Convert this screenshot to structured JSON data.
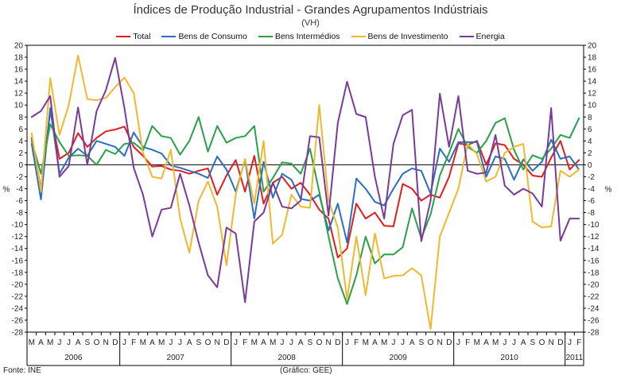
{
  "colors": {
    "total": "#e01e1e",
    "consumo": "#2a6fbf",
    "intermedios": "#2aa04a",
    "investimento": "#f0b830",
    "energia": "#7a3a9a"
  },
  "footer": {
    "source": "Fonte: INE",
    "credit": "(Gráfico: GEE)"
  },
  "chart_data": {
    "type": "line",
    "title": "Índices de Produção Industrial - Grandes Agrupamentos Indústriais",
    "subtitle": "(VH)",
    "ylabel_left": "%",
    "ylabel_right": "%",
    "ylim": [
      -28,
      20
    ],
    "yticks": [
      20,
      18,
      16,
      14,
      12,
      10,
      8,
      6,
      4,
      2,
      0,
      -2,
      -4,
      -6,
      -8,
      -10,
      -12,
      -14,
      -16,
      -18,
      -20,
      -22,
      -24,
      -26,
      -28
    ],
    "month_labels": [
      "M",
      "A",
      "M",
      "J",
      "J",
      "A",
      "S",
      "O",
      "N",
      "D",
      "J",
      "F",
      "M",
      "A",
      "M",
      "J",
      "J",
      "A",
      "S",
      "O",
      "N",
      "D",
      "J",
      "F",
      "M",
      "A",
      "M",
      "J",
      "J",
      "A",
      "S",
      "O",
      "N",
      "D",
      "J",
      "F",
      "M",
      "A",
      "M",
      "J",
      "J",
      "A",
      "S",
      "O",
      "N",
      "D",
      "J",
      "F",
      "M",
      "A",
      "M",
      "J",
      "J",
      "A",
      "S",
      "O",
      "N",
      "D",
      "J",
      "F"
    ],
    "year_labels": [
      {
        "label": "2006",
        "start": 0,
        "end": 9
      },
      {
        "label": "2007",
        "start": 10,
        "end": 21
      },
      {
        "label": "2008",
        "start": 22,
        "end": 33
      },
      {
        "label": "2009",
        "start": 34,
        "end": 45
      },
      {
        "label": "2010",
        "start": 46,
        "end": 57
      },
      {
        "label": "2011",
        "start": 58,
        "end": 59
      }
    ],
    "series": [
      {
        "key": "total",
        "name": "Total",
        "values": [
          4.5,
          -4.0,
          9.0,
          1.0,
          2.0,
          5.3,
          3.0,
          4.5,
          5.6,
          5.9,
          6.4,
          3.0,
          1.5,
          -0.3,
          -0.2,
          -0.8,
          -1.0,
          -1.5,
          -1.0,
          -0.6,
          -5.0,
          -1.8,
          0.8,
          -4.5,
          1.5,
          -6.5,
          -3.0,
          -2.0,
          -4.0,
          -3.0,
          -5.0,
          -7.5,
          -9.0,
          -15.5,
          -14.0,
          -6.5,
          -9.0,
          -8.0,
          -10.2,
          -10.3,
          -3.2,
          -4.0,
          -6.0,
          -5.0,
          -5.5,
          -2.0,
          3.6,
          3.3,
          4.0,
          0.0,
          3.6,
          3.3,
          1.0,
          0.0,
          -1.8,
          -2.0,
          1.2,
          4.0,
          -0.8,
          0.8
        ]
      },
      {
        "key": "consumo",
        "name": "Bens de Consumo",
        "values": [
          3.5,
          -5.8,
          9.5,
          -1.5,
          1.2,
          2.7,
          1.5,
          4.0,
          3.5,
          3.0,
          1.5,
          5.4,
          3.0,
          2.5,
          1.9,
          -0.1,
          -0.5,
          -1.0,
          -1.5,
          -2.2,
          1.4,
          -0.8,
          -4.5,
          0.8,
          -9.0,
          0.5,
          -5.5,
          -1.5,
          -2.5,
          -5.7,
          -6.0,
          -5.0,
          -11.0,
          -6.5,
          -13.0,
          -2.3,
          -4.0,
          -6.2,
          -6.8,
          -4.0,
          -1.5,
          -0.6,
          -1.0,
          -4.8,
          2.7,
          0.5,
          3.8,
          3.8,
          3.8,
          -2.0,
          1.4,
          1.0,
          -2.5,
          0.9,
          -1.0,
          0.5,
          4.2,
          1.0,
          1.4,
          -0.8
        ]
      },
      {
        "key": "intermedios",
        "name": "Bens Intermédios",
        "values": [
          4.0,
          -1.5,
          6.8,
          3.8,
          1.5,
          1.6,
          1.5,
          0.0,
          2.5,
          1.8,
          3.5,
          3.7,
          2.4,
          6.5,
          4.8,
          4.5,
          1.7,
          4.0,
          8.0,
          2.2,
          6.5,
          3.7,
          4.5,
          4.8,
          6.5,
          -4.5,
          -2.2,
          0.4,
          0.2,
          -1.5,
          2.7,
          -4.5,
          -12.0,
          -19.0,
          -23.3,
          -18.5,
          -12.0,
          -16.5,
          -15.0,
          -15.0,
          -13.8,
          -7.3,
          -12.3,
          -8.3,
          -1.8,
          2.0,
          6.0,
          3.0,
          2.0,
          4.0,
          7.0,
          7.8,
          2.5,
          -0.8,
          1.6,
          1.0,
          2.7,
          5.0,
          4.5,
          7.8
        ]
      },
      {
        "key": "investimento",
        "name": "Bens de Investimento",
        "values": [
          5.3,
          -4.5,
          14.5,
          5.0,
          10.0,
          18.3,
          11.0,
          10.8,
          11.2,
          13.0,
          14.6,
          12.0,
          2.0,
          -2.0,
          -2.3,
          2.5,
          -9.0,
          -14.7,
          -6.0,
          -2.8,
          -7.0,
          -16.8,
          -5.0,
          1.0,
          -6.5,
          4.0,
          -13.2,
          -11.7,
          -5.0,
          -7.0,
          -7.2,
          10.0,
          -6.0,
          -10.5,
          -22.5,
          -12.0,
          -21.8,
          -11.5,
          -19.0,
          -18.6,
          -18.5,
          -17.3,
          -18.5,
          -27.5,
          -12.0,
          -8.0,
          -4.0,
          3.5,
          1.8,
          -2.8,
          -2.0,
          2.0,
          3.0,
          3.5,
          -9.5,
          -10.5,
          -10.3,
          -1.0,
          -2.0,
          -0.8
        ]
      },
      {
        "key": "energia",
        "name": "Energia",
        "values": [
          8.0,
          9.0,
          11.5,
          -2.0,
          -0.2,
          9.6,
          0.0,
          9.0,
          12.5,
          17.9,
          9.5,
          -0.5,
          -5.0,
          -12.0,
          -7.5,
          -7.2,
          -1.5,
          -6.8,
          -13.0,
          -18.5,
          -20.5,
          -10.5,
          -11.5,
          -23.0,
          -9.5,
          -8.0,
          -3.0,
          -7.0,
          -7.3,
          -6.0,
          4.8,
          4.6,
          -8.5,
          7.0,
          13.9,
          8.5,
          8.0,
          -2.0,
          -9.0,
          3.5,
          8.3,
          9.2,
          -12.8,
          -6.0,
          11.9,
          3.0,
          11.5,
          -1.0,
          -1.5,
          -1.3,
          5.0,
          -3.5,
          -5.0,
          -4.0,
          -4.8,
          -7.0,
          9.5,
          -12.7,
          -9.0,
          -9.0
        ]
      }
    ]
  }
}
